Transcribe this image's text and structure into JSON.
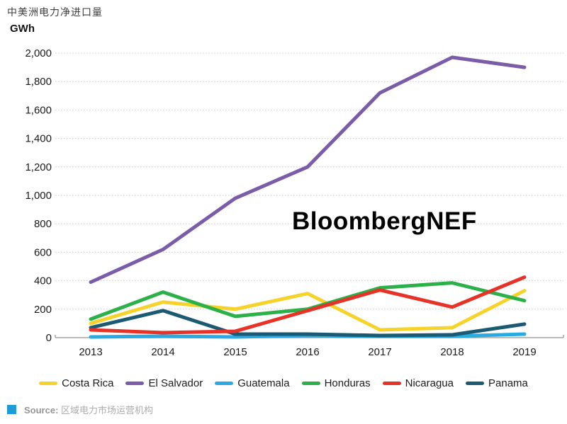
{
  "title": "中美洲电力净进口量",
  "unit_label": "GWh",
  "watermark": "BloombergNEF",
  "source": {
    "label": "Source:",
    "text": "区域电力市场运营机构"
  },
  "axis": {
    "x_labels": [
      "2013",
      "2014",
      "2015",
      "2016",
      "2017",
      "2018",
      "2019"
    ]
  },
  "chart_data": {
    "type": "line",
    "title": "中美洲电力净进口量",
    "ylabel": "GWh",
    "x": [
      "2013",
      "2014",
      "2015",
      "2016",
      "2017",
      "2018",
      "2019"
    ],
    "ylim": [
      0,
      2000
    ],
    "ytick_step": 200,
    "grid": "horizontal-dashed",
    "legend_position": "bottom",
    "series": [
      {
        "name": "Costa Rica",
        "color": "#F6D32B",
        "values": [
          100,
          250,
          200,
          310,
          55,
          70,
          330
        ]
      },
      {
        "name": "El Salvador",
        "color": "#7A5CA8",
        "values": [
          390,
          620,
          980,
          1200,
          1720,
          1970,
          1900
        ]
      },
      {
        "name": "Guatemala",
        "color": "#29ABE2",
        "values": [
          5,
          10,
          5,
          15,
          10,
          10,
          25
        ]
      },
      {
        "name": "Honduras",
        "color": "#2BB04A",
        "values": [
          130,
          320,
          150,
          200,
          350,
          385,
          260
        ]
      },
      {
        "name": "Nicaragua",
        "color": "#E73228",
        "values": [
          55,
          35,
          45,
          190,
          335,
          215,
          425
        ]
      },
      {
        "name": "Panama",
        "color": "#1C5A73",
        "values": [
          70,
          190,
          25,
          25,
          15,
          20,
          95
        ]
      }
    ]
  }
}
